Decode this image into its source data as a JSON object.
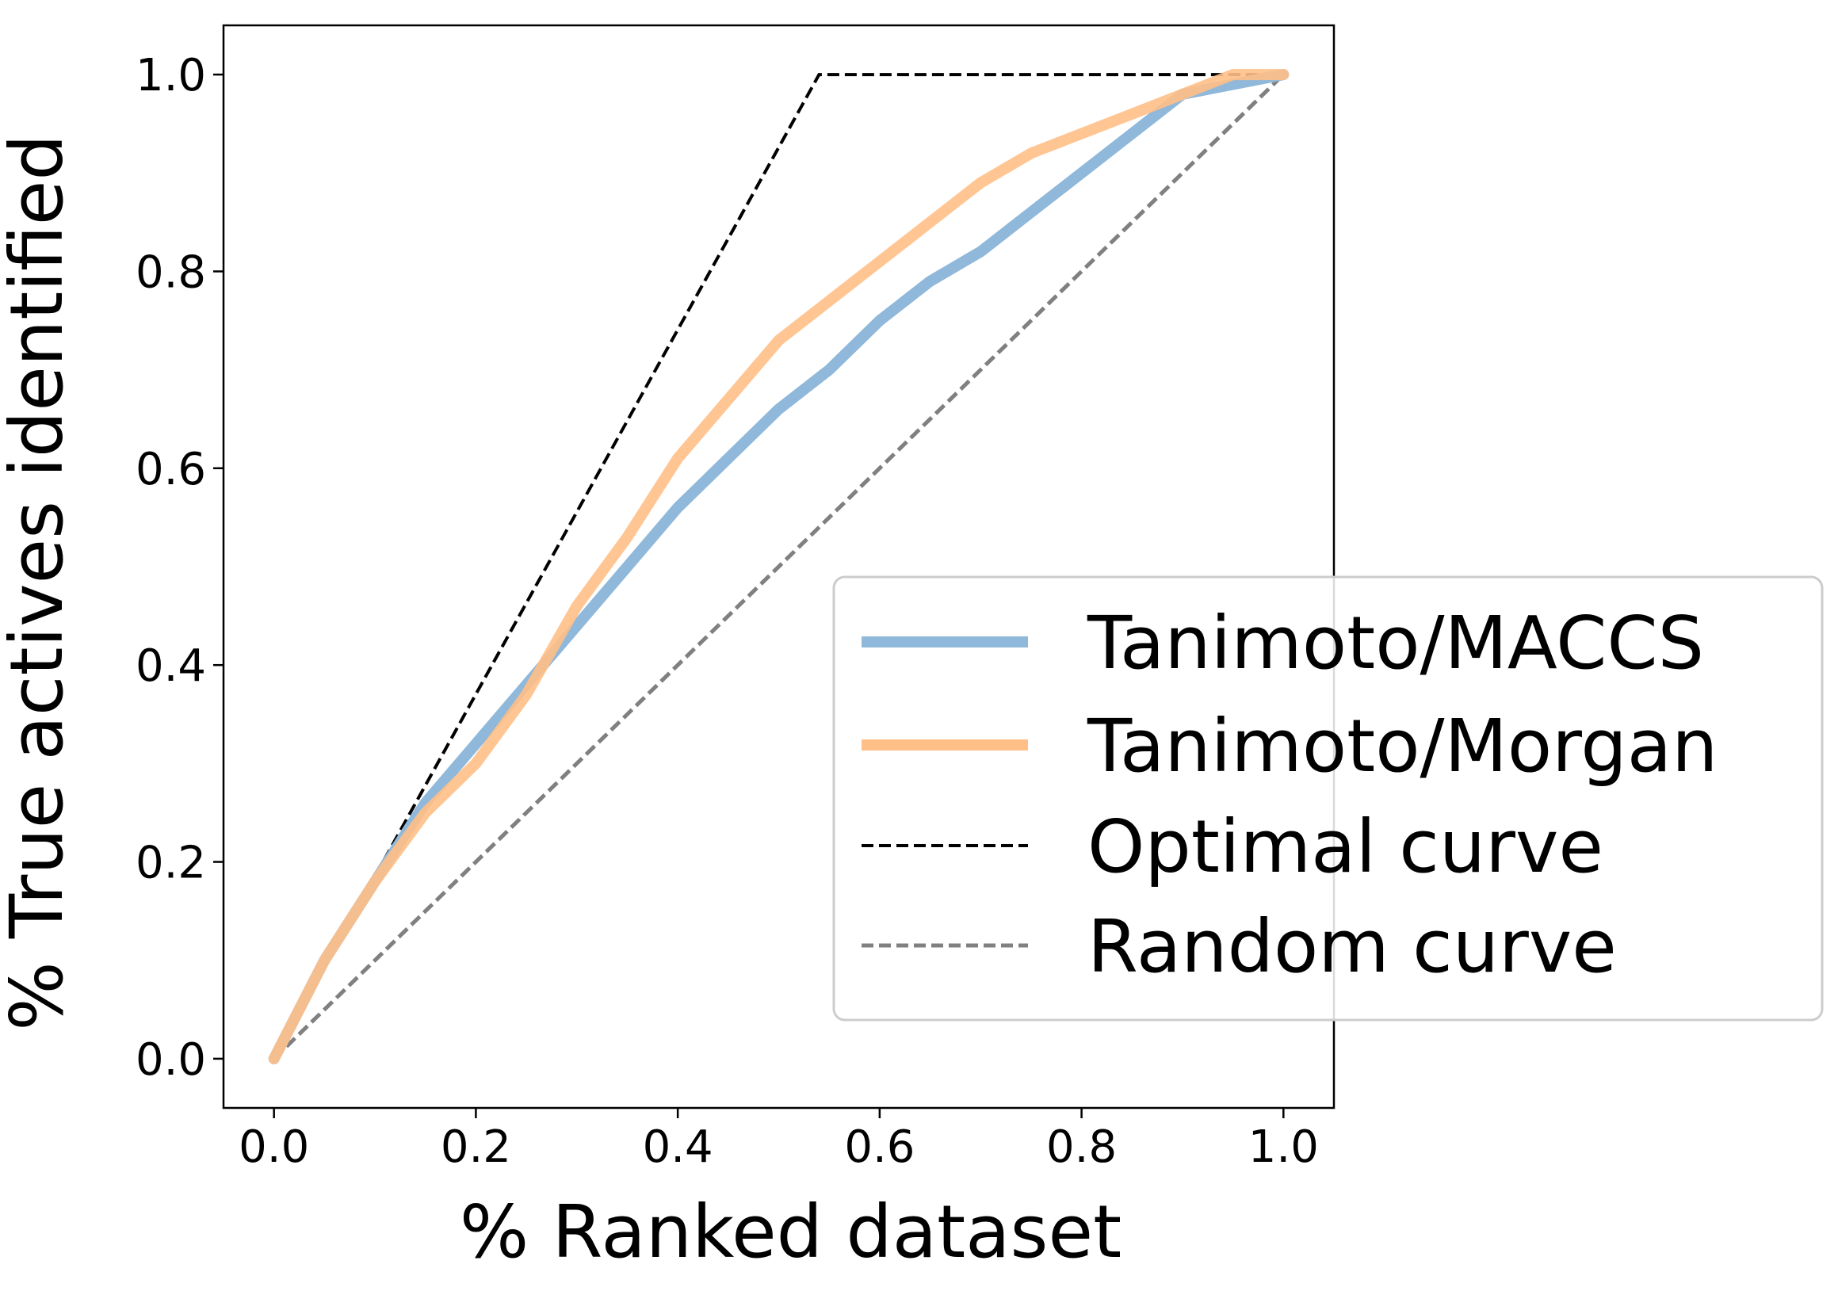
{
  "chart_data": {
    "type": "line",
    "title": "",
    "xlabel": "% Ranked dataset",
    "ylabel": "% True actives identified",
    "xlim": [
      -0.05,
      1.05
    ],
    "ylim": [
      -0.05,
      1.05
    ],
    "xticks": [
      "0.0",
      "0.2",
      "0.4",
      "0.6",
      "0.8",
      "1.0"
    ],
    "yticks": [
      "0.0",
      "0.2",
      "0.4",
      "0.6",
      "0.8",
      "1.0"
    ],
    "grid": false,
    "legend_position": "lower-right (extends outside axes)",
    "series": [
      {
        "name": "Tanimoto/MACCS",
        "color": "#8fb8da",
        "style": "solid-thick",
        "x": [
          0.0,
          0.05,
          0.1,
          0.15,
          0.2,
          0.25,
          0.3,
          0.35,
          0.4,
          0.45,
          0.5,
          0.55,
          0.6,
          0.65,
          0.7,
          0.75,
          0.8,
          0.85,
          0.9,
          0.95,
          1.0
        ],
        "y": [
          0.0,
          0.1,
          0.18,
          0.26,
          0.32,
          0.38,
          0.44,
          0.5,
          0.56,
          0.61,
          0.66,
          0.7,
          0.75,
          0.79,
          0.82,
          0.86,
          0.9,
          0.94,
          0.98,
          0.99,
          1.0
        ]
      },
      {
        "name": "Tanimoto/Morgan",
        "color": "#ffbf86",
        "style": "solid-thick",
        "x": [
          0.0,
          0.05,
          0.1,
          0.15,
          0.2,
          0.25,
          0.3,
          0.35,
          0.4,
          0.45,
          0.5,
          0.55,
          0.6,
          0.65,
          0.7,
          0.75,
          0.8,
          0.85,
          0.9,
          0.95,
          1.0
        ],
        "y": [
          0.0,
          0.1,
          0.18,
          0.25,
          0.3,
          0.37,
          0.46,
          0.53,
          0.61,
          0.67,
          0.73,
          0.77,
          0.81,
          0.85,
          0.89,
          0.92,
          0.94,
          0.96,
          0.98,
          1.0,
          1.0
        ]
      },
      {
        "name": "Optimal curve",
        "color": "#000000",
        "style": "dashed",
        "x": [
          0.0,
          0.54,
          1.0
        ],
        "y": [
          0.0,
          1.0,
          1.0
        ]
      },
      {
        "name": "Random curve",
        "color": "#808080",
        "style": "dashed",
        "x": [
          0.0,
          1.0
        ],
        "y": [
          0.0,
          1.0
        ]
      }
    ]
  }
}
